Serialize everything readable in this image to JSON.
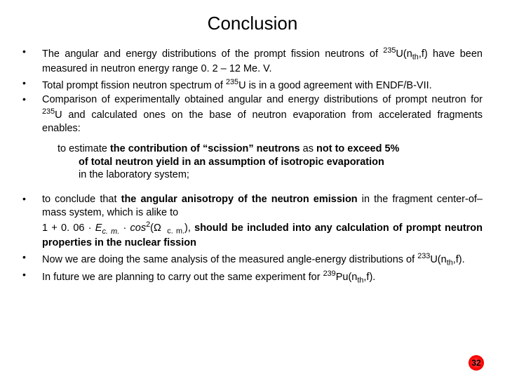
{
  "title": "Conclusion",
  "page_number": "32",
  "page_number_colors": {
    "bg_center": "#ff5555",
    "bg_mid": "#ff0000",
    "bg_edge": "#aa0000",
    "text": "#000000"
  },
  "fonts": {
    "title_size": 26,
    "body_size": 14.5,
    "family": "Arial"
  },
  "bullets_group1": [
    {
      "html": "The angular and energy distributions of the prompt fission neutrons of <span class='sup'>235</span>U(n<span class='sub'>th</span>,f) have been measured in neutron energy range 0. 2 – 12 Me. V."
    },
    {
      "html": "Total prompt fission neutron spectrum of <span class='sup'>235</span>U is in a good agreement with ENDF/B-VII."
    },
    {
      "html": "Comparison of experimentally obtained angular and energy distributions of prompt neutron for <span class='sup'>235</span>U and calculated ones on the base of neutron evaporation from accelerated fragments enables:"
    }
  ],
  "indent_block": {
    "line1_html": "to estimate <span class='bold'>the contribution of “scission” neutrons</span> as <span class='bold'>not to exceed 5%</span>",
    "line2": "of total neutron yield in an assumption of isotropic evaporation",
    "line3": "in the laboratory system;"
  },
  "bullets_group2": [
    {
      "html": "to conclude that <span class='bold'>the angular anisotropy of the neutron emission</span> in the fragment center-of–mass system, which is alike to<br>1 + 0. 06 · <span class='italic'>E<span class='sub'>c. m.</span></span> · <span class='italic'>cos</span><span class='sup'>2</span>(Ω<span class='sub'>&nbsp;&nbsp;c. m.</span>), <span class='bold'>should be included into any calculation of prompt neutron properties in the nuclear fission</span>"
    },
    {
      "html": "Now we are doing the same analysis of the measured angle-energy distributions of <span class='sup'>233</span>U(n<span class='sub'>th</span>,f)."
    },
    {
      "html": "In future we are planning to carry out the same experiment for <span class='sup'>239</span>Pu(n<span class='sub'>th</span>,f)."
    }
  ]
}
